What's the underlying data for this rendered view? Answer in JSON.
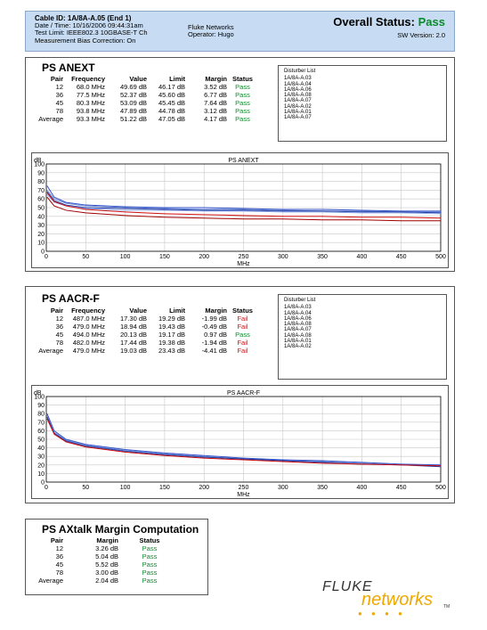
{
  "header": {
    "cable_id": "Cable ID: 1A/8A-A.05 (End 1)",
    "date_time": "Date / Time: 10/16/2006 09:44:31am",
    "test_limit": "Test Limit: IEEE802.3 10GBASE-T Ch",
    "bias": "Measurement Bias Correction: On",
    "company": "Fluke Networks",
    "operator": "Operator: Hugo",
    "overall_label": "Overall Status:",
    "overall_value": "Pass",
    "sw_version": "SW Version: 2.0"
  },
  "anext": {
    "title": "PS ANEXT",
    "headers": [
      "Pair",
      "Frequency",
      "Value",
      "Limit",
      "Margin",
      "Status"
    ],
    "rows": [
      [
        "12",
        "68.0 MHz",
        "49.69 dB",
        "46.17 dB",
        "3.52 dB",
        "Pass"
      ],
      [
        "36",
        "77.5 MHz",
        "52.37 dB",
        "45.60 dB",
        "6.77 dB",
        "Pass"
      ],
      [
        "45",
        "80.3 MHz",
        "53.09 dB",
        "45.45 dB",
        "7.64 dB",
        "Pass"
      ],
      [
        "78",
        "93.8 MHz",
        "47.89 dB",
        "44.78 dB",
        "3.12 dB",
        "Pass"
      ],
      [
        "Average",
        "93.3 MHz",
        "51.22 dB",
        "47.05 dB",
        "4.17 dB",
        "Pass"
      ]
    ],
    "disturber_title": "Disturber List",
    "disturbers": [
      "1A/8A-A.03",
      "1A/8A-A.04",
      "1A/8A-A.06",
      "1A/8A-A.08",
      "1A/8A-A.07",
      "1A/8A-A.02",
      "1A/8A-A.01",
      "1A/8A-A.07"
    ]
  },
  "aacrf": {
    "title": "PS AACR-F",
    "headers": [
      "Pair",
      "Frequency",
      "Value",
      "Limit",
      "Margin",
      "Status"
    ],
    "rows": [
      [
        "12",
        "487.0 MHz",
        "17.30 dB",
        "19.29 dB",
        "-1.99 dB",
        "Fail"
      ],
      [
        "36",
        "479.0 MHz",
        "18.94 dB",
        "19.43 dB",
        "-0.49 dB",
        "Fail"
      ],
      [
        "45",
        "494.0 MHz",
        "20.13 dB",
        "19.17 dB",
        "0.97 dB",
        "Pass"
      ],
      [
        "78",
        "482.0 MHz",
        "17.44 dB",
        "19.38 dB",
        "-1.94 dB",
        "Fail"
      ],
      [
        "Average",
        "479.0 MHz",
        "19.03 dB",
        "23.43 dB",
        "-4.41 dB",
        "Fail"
      ]
    ],
    "disturber_title": "Disturber List",
    "disturbers": [
      "1A/8A-A.03",
      "1A/8A-A.04",
      "1A/8A-A.06",
      "1A/8A-A.08",
      "1A/8A-A.07",
      "1A/8A-A.08",
      "1A/8A-A.01",
      "1A/8A-A.02"
    ]
  },
  "axtalk": {
    "title": "PS AXtalk Margin Computation",
    "headers": [
      "Pair",
      "Margin",
      "Status"
    ],
    "rows": [
      [
        "12",
        "3.26 dB",
        "Pass"
      ],
      [
        "36",
        "5.04 dB",
        "Pass"
      ],
      [
        "45",
        "5.52 dB",
        "Pass"
      ],
      [
        "78",
        "3.00 dB",
        "Pass"
      ],
      [
        "Average",
        "2.04 dB",
        "Pass"
      ]
    ]
  },
  "logo": {
    "fluke": "FLUKE",
    "networks": "networks",
    "tm": "TM"
  },
  "chart_data": [
    {
      "type": "line",
      "title": "PS ANEXT",
      "xlabel": "MHz",
      "ylabel": "dB",
      "xlim": [
        0,
        500
      ],
      "ylim": [
        0,
        100
      ],
      "xticks": [
        0,
        50,
        100,
        150,
        200,
        250,
        300,
        350,
        400,
        450,
        500
      ],
      "yticks": [
        0,
        10,
        20,
        30,
        40,
        50,
        60,
        70,
        80,
        90,
        100
      ],
      "grid": true,
      "series": [
        {
          "color": "#3050c8",
          "x": [
            1,
            10,
            25,
            50,
            100,
            150,
            200,
            250,
            300,
            350,
            400,
            450,
            500
          ],
          "y": [
            75,
            62,
            56,
            53,
            51,
            50,
            50,
            49,
            48,
            48,
            47,
            46,
            46
          ]
        },
        {
          "color": "#6a8ad8",
          "x": [
            1,
            10,
            25,
            50,
            100,
            150,
            200,
            250,
            300,
            350,
            400,
            450,
            500
          ],
          "y": [
            70,
            60,
            55,
            52,
            50,
            49,
            48,
            48,
            47,
            46,
            46,
            45,
            45
          ]
        },
        {
          "color": "#203aa0",
          "x": [
            1,
            10,
            25,
            50,
            100,
            150,
            200,
            250,
            300,
            350,
            400,
            450,
            500
          ],
          "y": [
            68,
            58,
            53,
            50,
            49,
            48,
            47,
            47,
            46,
            46,
            45,
            45,
            44
          ]
        },
        {
          "color": "#90a8e8",
          "x": [
            1,
            10,
            25,
            50,
            100,
            150,
            200,
            250,
            300,
            350,
            400,
            450,
            500
          ],
          "y": [
            65,
            56,
            52,
            49,
            47,
            47,
            46,
            46,
            45,
            45,
            44,
            44,
            43
          ]
        },
        {
          "color": "#d01010",
          "x": [
            1,
            10,
            25,
            50,
            100,
            150,
            200,
            250,
            300,
            350,
            400,
            450,
            500
          ],
          "y": [
            67,
            57,
            52,
            48,
            45,
            43,
            42,
            41,
            40,
            40,
            39,
            39,
            38
          ]
        },
        {
          "color": "#a00000",
          "x": [
            1,
            10,
            25,
            50,
            100,
            150,
            200,
            250,
            300,
            350,
            400,
            450,
            500
          ],
          "y": [
            62,
            52,
            47,
            44,
            41,
            39,
            38,
            37,
            37,
            36,
            36,
            35,
            35
          ]
        }
      ]
    },
    {
      "type": "line",
      "title": "PS AACR-F",
      "xlabel": "MHz",
      "ylabel": "dB",
      "xlim": [
        0,
        500
      ],
      "ylim": [
        0,
        100
      ],
      "xticks": [
        0,
        50,
        100,
        150,
        200,
        250,
        300,
        350,
        400,
        450,
        500
      ],
      "yticks": [
        0,
        10,
        20,
        30,
        40,
        50,
        60,
        70,
        80,
        90,
        100
      ],
      "grid": true,
      "series": [
        {
          "color": "#3050c8",
          "x": [
            1,
            10,
            25,
            50,
            100,
            150,
            200,
            250,
            300,
            350,
            400,
            450,
            500
          ],
          "y": [
            80,
            60,
            50,
            44,
            38,
            34,
            31,
            28,
            26,
            25,
            23,
            21,
            20
          ]
        },
        {
          "color": "#6a8ad8",
          "x": [
            1,
            10,
            25,
            50,
            100,
            150,
            200,
            250,
            300,
            350,
            400,
            450,
            500
          ],
          "y": [
            78,
            58,
            49,
            43,
            37,
            33,
            30,
            27,
            25,
            24,
            22,
            20,
            19
          ]
        },
        {
          "color": "#203aa0",
          "x": [
            1,
            10,
            25,
            50,
            100,
            150,
            200,
            250,
            300,
            350,
            400,
            450,
            500
          ],
          "y": [
            76,
            57,
            48,
            42,
            36,
            32,
            29,
            27,
            25,
            23,
            21,
            20,
            18
          ]
        },
        {
          "color": "#d01010",
          "x": [
            1,
            10,
            25,
            50,
            100,
            150,
            200,
            250,
            300,
            350,
            400,
            450,
            500
          ],
          "y": [
            74,
            56,
            47,
            41,
            35,
            31,
            28,
            26,
            24,
            22,
            21,
            20,
            19
          ]
        }
      ]
    }
  ]
}
